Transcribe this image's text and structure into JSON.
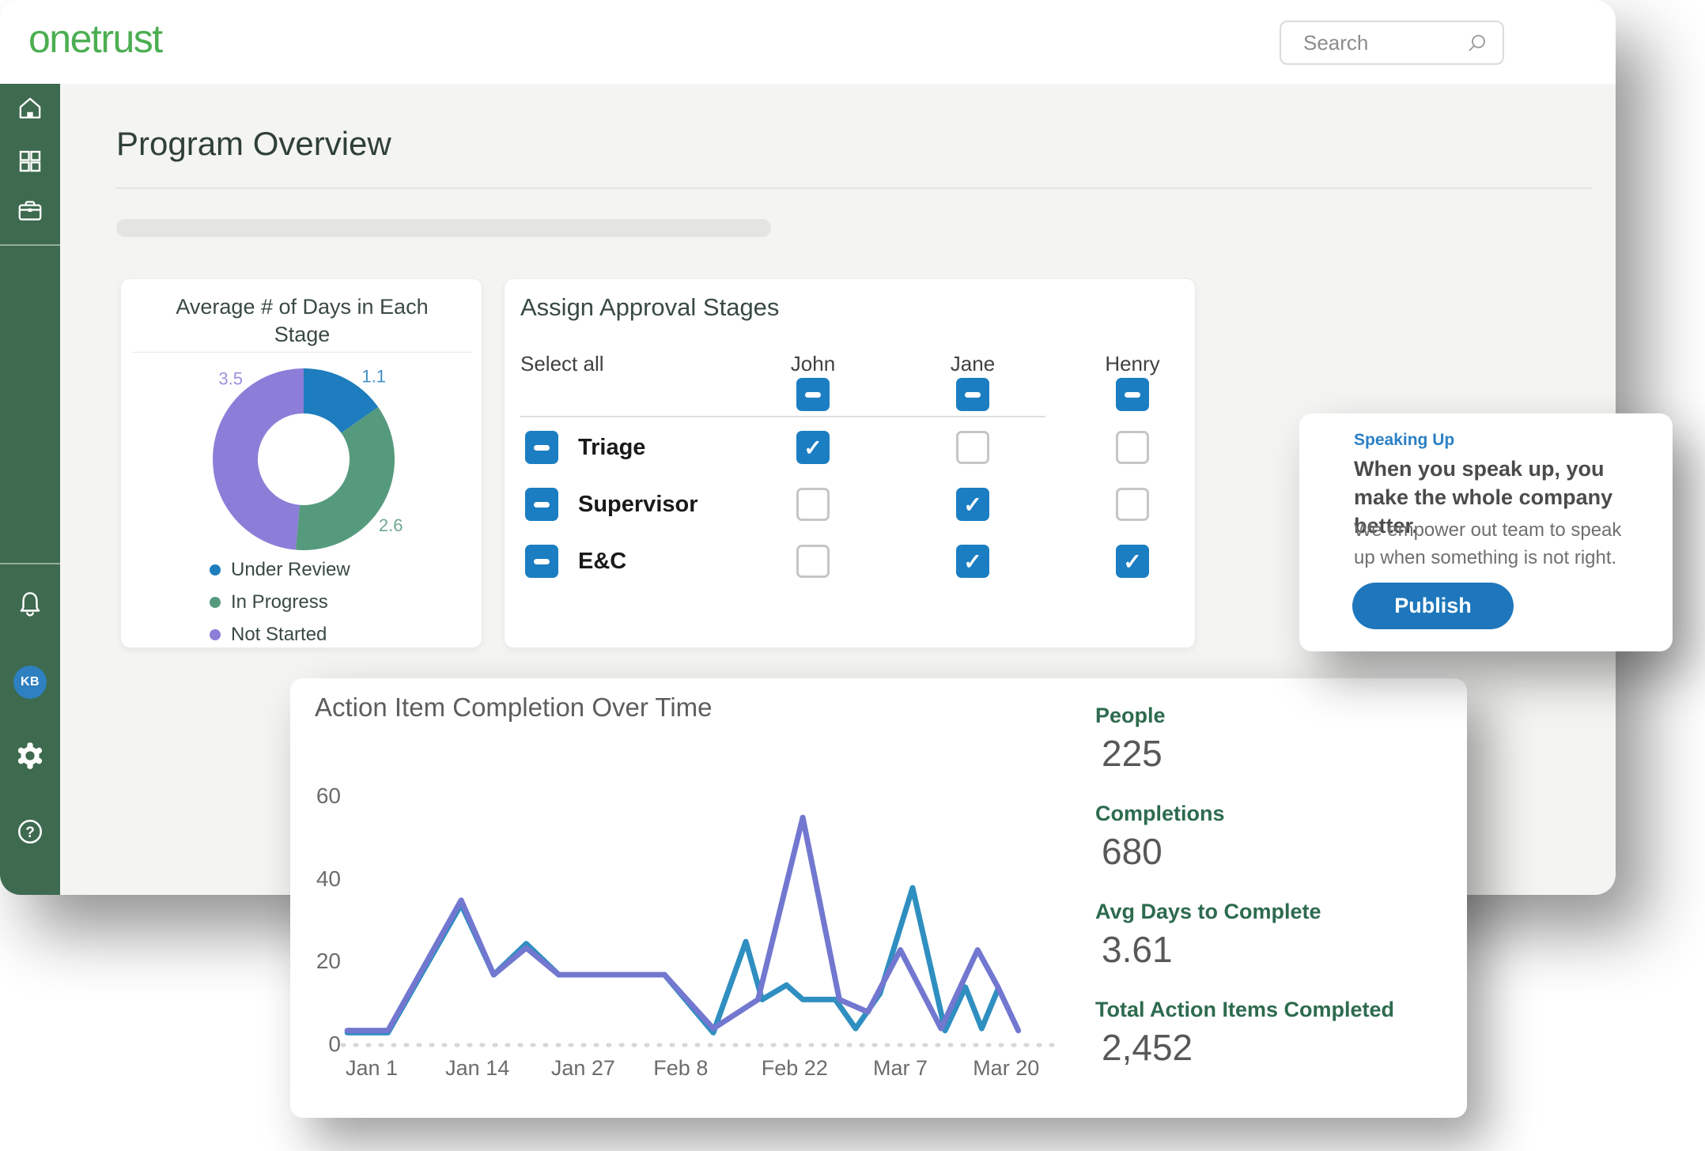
{
  "header": {
    "logo": "onetrust",
    "search_placeholder": "Search"
  },
  "sidebar": {
    "avatar_initials": "KB"
  },
  "page": {
    "title": "Program Overview"
  },
  "approval": {
    "title": "Assign Approval Stages",
    "select_all_label": "Select all",
    "columns": [
      "John",
      "Jane",
      "Henry"
    ],
    "header_states": [
      "indeterminate",
      "indeterminate",
      "indeterminate"
    ],
    "rows": [
      {
        "label": "Triage",
        "row_state": "indeterminate",
        "cells": [
          "checked",
          "unchecked",
          "unchecked"
        ]
      },
      {
        "label": "Supervisor",
        "row_state": "indeterminate",
        "cells": [
          "unchecked",
          "checked",
          "unchecked"
        ]
      },
      {
        "label": "E&C",
        "row_state": "indeterminate",
        "cells": [
          "unchecked",
          "checked",
          "checked"
        ]
      }
    ]
  },
  "promo": {
    "tag": "Speaking Up",
    "heading": "When you speak up, you make the whole company better.",
    "body": "We empower out team to speak up when something is not right.",
    "button_label": "Publish"
  },
  "stats": [
    {
      "label": "People",
      "value": "225"
    },
    {
      "label": "Completions",
      "value": "680"
    },
    {
      "label": "Avg Days to Complete",
      "value": "3.61"
    },
    {
      "label": "Total Action Items Completed",
      "value": "2,452"
    }
  ],
  "chart_data": [
    {
      "type": "pie",
      "variant": "donut",
      "title": "Average # of Days in Each Stage",
      "slices": [
        {
          "label": "Under Review",
          "value": 1.1,
          "color": "#1e7dbe"
        },
        {
          "label": "In Progress",
          "value": 2.6,
          "color": "#569a7d"
        },
        {
          "label": "Not Started",
          "value": 3.5,
          "color": "#8c7ed8"
        }
      ],
      "start_angle_deg": 0,
      "direction": "clockwise",
      "legend_position": "bottom"
    },
    {
      "type": "line",
      "title": "Action Item Completion Over Time",
      "ylim": [
        0,
        60
      ],
      "y_ticks": [
        0,
        20,
        40,
        60
      ],
      "x_ticks": [
        {
          "label": "Jan 1",
          "day": 0
        },
        {
          "label": "Jan 14",
          "day": 13
        },
        {
          "label": "Jan 27",
          "day": 26
        },
        {
          "label": "Feb 8",
          "day": 38
        },
        {
          "label": "Feb 22",
          "day": 52
        },
        {
          "label": "Mar 7",
          "day": 65
        },
        {
          "label": "Mar 20",
          "day": 78
        }
      ],
      "grid": "dotted zero baseline only",
      "legend_position": "none",
      "series": [
        {
          "name": "series-1",
          "color": "#2f8fc0",
          "points": [
            [
              -3,
              3
            ],
            [
              2,
              3
            ],
            [
              11,
              34
            ],
            [
              15,
              17
            ],
            [
              19,
              24.5
            ],
            [
              23,
              17
            ],
            [
              36,
              17
            ],
            [
              42,
              3
            ],
            [
              46,
              25
            ],
            [
              48,
              11
            ],
            [
              51,
              14.5
            ],
            [
              53,
              11
            ],
            [
              57,
              11
            ],
            [
              59.5,
              4
            ],
            [
              62.5,
              12.5
            ],
            [
              66.5,
              38
            ],
            [
              70.5,
              3.5
            ],
            [
              73,
              14
            ],
            [
              75,
              4
            ],
            [
              77,
              13.5
            ]
          ]
        },
        {
          "name": "series-2",
          "color": "#7277d0",
          "points": [
            [
              -3,
              3.5
            ],
            [
              2,
              3.5
            ],
            [
              11,
              35
            ],
            [
              15,
              17
            ],
            [
              19,
              23.5
            ],
            [
              23,
              17
            ],
            [
              36,
              17
            ],
            [
              42,
              4
            ],
            [
              47.5,
              11
            ],
            [
              53,
              55
            ],
            [
              57.5,
              11
            ],
            [
              61,
              8
            ],
            [
              65,
              23
            ],
            [
              70,
              4
            ],
            [
              74.5,
              23
            ],
            [
              77,
              14
            ],
            [
              79.5,
              3.5
            ]
          ]
        }
      ]
    }
  ]
}
